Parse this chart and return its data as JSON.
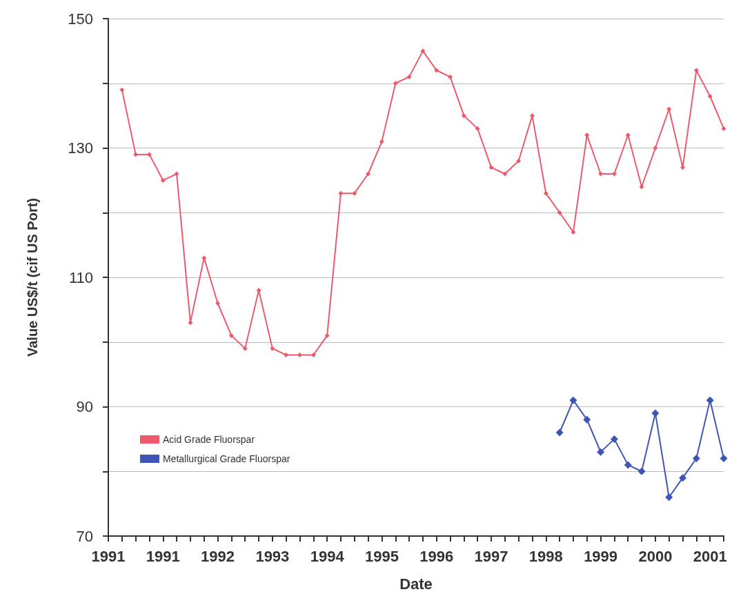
{
  "chart_data": {
    "type": "line",
    "xlabel": "Date",
    "ylabel": "Value US$/t (cif US Port)",
    "categories": [
      "1991",
      null,
      null,
      null,
      "1991",
      null,
      null,
      null,
      "1992",
      null,
      null,
      null,
      "1993",
      null,
      null,
      null,
      "1994",
      null,
      null,
      null,
      "1995",
      null,
      null,
      null,
      "1996",
      null,
      null,
      null,
      "1997",
      null,
      null,
      null,
      "1998",
      null,
      null,
      null,
      "1999",
      null,
      null,
      null,
      "2000",
      null,
      null,
      null,
      "2001",
      null
    ],
    "ylim": [
      70,
      150
    ],
    "yticks": [
      70,
      {
        "value": 80,
        "label": null
      },
      90,
      {
        "value": 100,
        "label": null
      },
      110,
      {
        "value": 120,
        "label": null
      },
      130,
      {
        "value": 140,
        "label": null
      },
      150
    ],
    "grid": "y",
    "legend": "bottom left",
    "marker": "diamond",
    "line_style": "solid",
    "series": [
      {
        "name": "Acid Grade Fluorspar",
        "color": "#ec5a6c",
        "values": [
          null,
          139,
          129,
          129,
          125,
          126,
          103,
          113,
          106,
          101,
          99,
          108,
          99,
          98,
          98,
          98,
          101,
          123,
          123,
          126,
          131,
          140,
          141,
          145,
          142,
          141,
          135,
          133,
          127,
          126,
          128,
          135,
          123,
          120,
          117,
          132,
          126,
          126,
          132,
          124,
          130,
          136,
          127,
          142,
          138,
          133
        ]
      },
      {
        "name": "Metallurgical Grade Fluorspar",
        "color": "#3f55b3",
        "values": [
          null,
          null,
          null,
          null,
          null,
          null,
          null,
          null,
          null,
          null,
          null,
          null,
          null,
          null,
          null,
          null,
          null,
          null,
          null,
          null,
          null,
          null,
          null,
          null,
          null,
          null,
          null,
          null,
          null,
          null,
          null,
          null,
          null,
          86,
          91,
          88,
          83,
          85,
          81,
          80,
          89,
          76,
          79,
          82,
          91,
          82
        ]
      }
    ]
  }
}
